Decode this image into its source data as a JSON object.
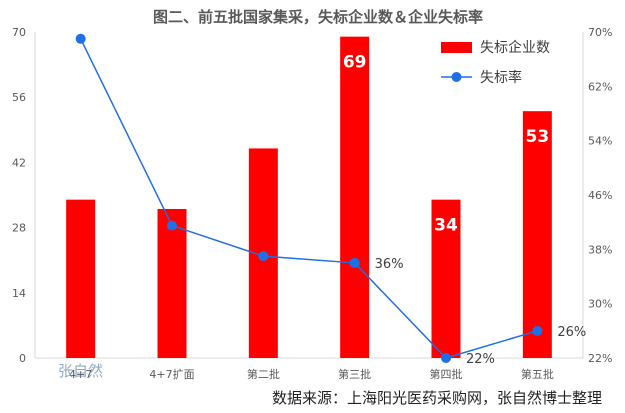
{
  "chart_data": {
    "type": "bar",
    "title": "图二、前五批国家集采，失标企业数＆企业失标率",
    "categories": [
      "4+7",
      "4+7扩面",
      "第二批",
      "第三批",
      "第四批",
      "第五批"
    ],
    "series": [
      {
        "name": "失标企业数",
        "type": "bar",
        "axis": "left",
        "color": "#ff0000",
        "values": [
          34,
          32,
          45,
          69,
          34,
          53
        ],
        "data_labels": [
          "",
          "",
          "",
          "69",
          "34",
          "53"
        ]
      },
      {
        "name": "失标率",
        "type": "line",
        "axis": "right",
        "color": "#1f6fe5",
        "values": [
          0.69,
          0.415,
          0.37,
          0.36,
          0.22,
          0.26
        ],
        "data_labels": [
          "",
          "",
          "",
          "36%",
          "22%",
          "26%"
        ]
      }
    ],
    "y_left": {
      "min": 0,
      "max": 70,
      "ticks": [
        "0",
        "14",
        "28",
        "42",
        "56",
        "70"
      ]
    },
    "y_right": {
      "min": 0.22,
      "max": 0.7,
      "ticks": [
        "22%",
        "30%",
        "38%",
        "46%",
        "54%",
        "62%",
        "70%"
      ]
    },
    "grid": false,
    "legend": "top-right"
  },
  "source_note": "数据来源：上海阳光医药采购网，张自然博士整理",
  "watermark": "张自然"
}
